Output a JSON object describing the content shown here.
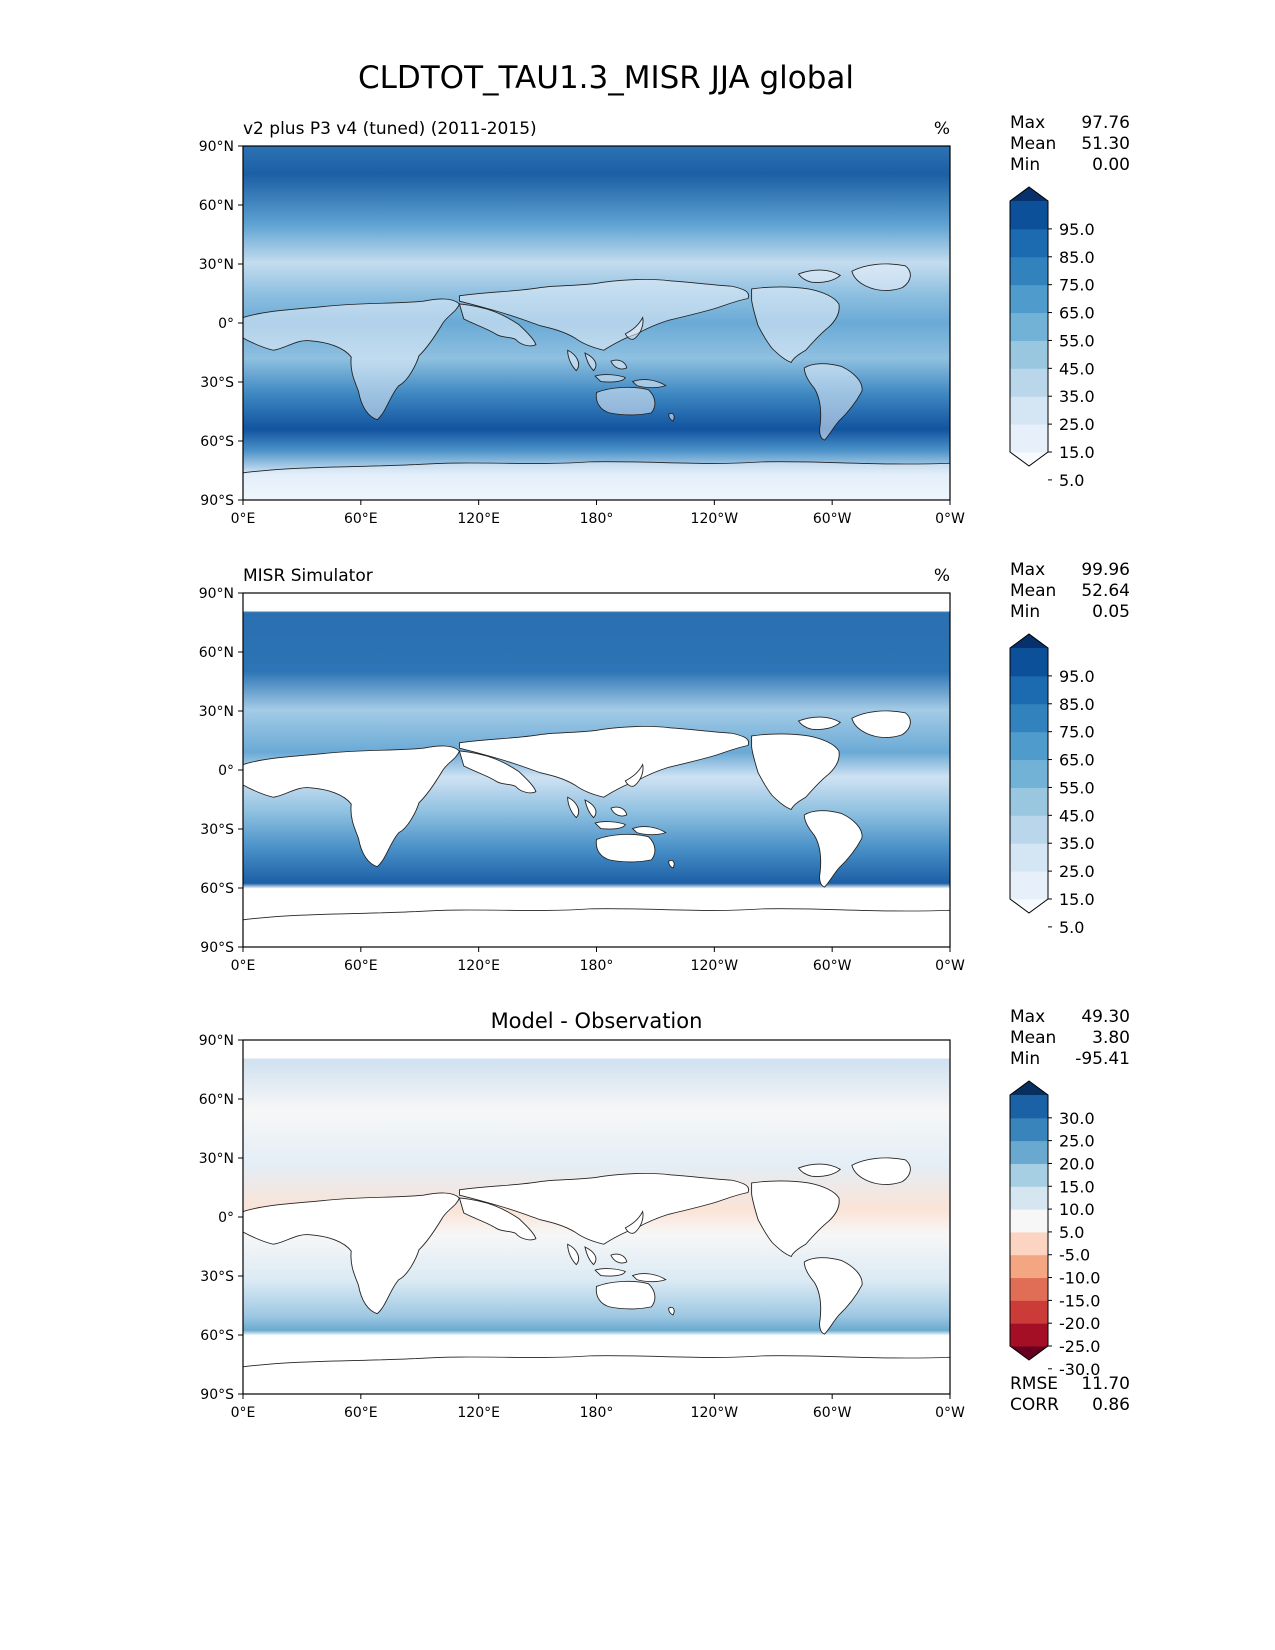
{
  "title": "CLDTOT_TAU1.3_MISR JJA global",
  "lat_ticks": [
    "90°N",
    "60°N",
    "30°N",
    "0°",
    "30°S",
    "60°S",
    "90°S"
  ],
  "lon_ticks": [
    "0°E",
    "60°E",
    "120°E",
    "180°",
    "120°W",
    "60°W",
    "0°W"
  ],
  "panels": [
    {
      "left_title": "v2 plus P3 v4 (tuned) (2011-2015)",
      "center_title": "",
      "units": "%",
      "stats": [
        {
          "label": "Max",
          "value": "97.76"
        },
        {
          "label": "Mean",
          "value": "51.30"
        },
        {
          "label": "Min",
          "value": "0.00"
        }
      ],
      "colorbar": {
        "labels": [
          "95.0",
          "85.0",
          "75.0",
          "65.0",
          "55.0",
          "45.0",
          "35.0",
          "25.0",
          "15.0",
          "5.0"
        ],
        "colors": [
          "#f7fbff",
          "#e7f0fa",
          "#d4e5f4",
          "#bad6eb",
          "#99c7e0",
          "#72b2d7",
          "#4f9bcb",
          "#3282be",
          "#1c6aaf",
          "#0b5098",
          "#08306b"
        ]
      }
    },
    {
      "left_title": "MISR Simulator",
      "center_title": "",
      "units": "%",
      "stats": [
        {
          "label": "Max",
          "value": "99.96"
        },
        {
          "label": "Mean",
          "value": "52.64"
        },
        {
          "label": "Min",
          "value": "0.05"
        }
      ],
      "colorbar": {
        "labels": [
          "95.0",
          "85.0",
          "75.0",
          "65.0",
          "55.0",
          "45.0",
          "35.0",
          "25.0",
          "15.0",
          "5.0"
        ],
        "colors": [
          "#f7fbff",
          "#e7f0fa",
          "#d4e5f4",
          "#bad6eb",
          "#99c7e0",
          "#72b2d7",
          "#4f9bcb",
          "#3282be",
          "#1c6aaf",
          "#0b5098",
          "#08306b"
        ]
      }
    },
    {
      "left_title": "",
      "center_title": "Model - Observation",
      "units": "",
      "stats": [
        {
          "label": "Max",
          "value": "49.30"
        },
        {
          "label": "Mean",
          "value": "3.80"
        },
        {
          "label": "Min",
          "value": "-95.41"
        }
      ],
      "colorbar": {
        "labels": [
          "30.0",
          "25.0",
          "20.0",
          "15.0",
          "10.0",
          "5.0",
          "-5.0",
          "-10.0",
          "-15.0",
          "-20.0",
          "-25.0",
          "-30.0"
        ],
        "colors": [
          "#67001f",
          "#a50f25",
          "#cb3b37",
          "#e06d56",
          "#f4a582",
          "#fbd5c2",
          "#f7f7f7",
          "#d5e6f0",
          "#a7cfe4",
          "#6aa9cf",
          "#3884bb",
          "#1b61a5",
          "#053061"
        ]
      },
      "footer_stats": [
        {
          "label": "RMSE",
          "value": "11.70"
        },
        {
          "label": "CORR",
          "value": "0.86"
        }
      ]
    }
  ],
  "chart_data": [
    {
      "type": "heatmap",
      "title": "v2 plus P3 v4 (tuned) (2011-2015)",
      "units": "%",
      "x_range_deg_east": [
        0,
        360
      ],
      "y_range_deg_north": [
        -90,
        90
      ],
      "levels": [
        5,
        15,
        25,
        35,
        45,
        55,
        65,
        75,
        85,
        95
      ],
      "extend": "both",
      "zonal_mean_profile": [
        {
          "lat": 75,
          "value": 75
        },
        {
          "lat": 60,
          "value": 85
        },
        {
          "lat": 45,
          "value": 75
        },
        {
          "lat": 30,
          "value": 35
        },
        {
          "lat": 15,
          "value": 45
        },
        {
          "lat": 0,
          "value": 50
        },
        {
          "lat": -15,
          "value": 45
        },
        {
          "lat": -30,
          "value": 50
        },
        {
          "lat": -45,
          "value": 80
        },
        {
          "lat": -55,
          "value": 90
        },
        {
          "lat": -65,
          "value": 80
        },
        {
          "lat": -80,
          "value": 10
        }
      ]
    },
    {
      "type": "heatmap",
      "title": "MISR Simulator",
      "units": "%",
      "x_range_deg_east": [
        0,
        360
      ],
      "y_range_deg_north": [
        -90,
        90
      ],
      "levels": [
        5,
        15,
        25,
        35,
        45,
        55,
        65,
        75,
        85,
        95
      ],
      "extend": "both",
      "data_coverage": "ocean only, approx 60°S–80°N",
      "zonal_mean_profile": [
        {
          "lat": 75,
          "value": 75
        },
        {
          "lat": 60,
          "value": 85
        },
        {
          "lat": 45,
          "value": 80
        },
        {
          "lat": 30,
          "value": 45
        },
        {
          "lat": 15,
          "value": 55
        },
        {
          "lat": 0,
          "value": 60
        },
        {
          "lat": -15,
          "value": 55
        },
        {
          "lat": -30,
          "value": 60
        },
        {
          "lat": -45,
          "value": 75
        },
        {
          "lat": -55,
          "value": 80
        }
      ]
    },
    {
      "type": "heatmap",
      "title": "Model - Observation",
      "units": "%",
      "x_range_deg_east": [
        0,
        360
      ],
      "y_range_deg_north": [
        -90,
        90
      ],
      "levels": [
        -30,
        -25,
        -20,
        -15,
        -10,
        -5,
        5,
        10,
        15,
        20,
        25,
        30
      ],
      "extend": "both",
      "rmse": 11.7,
      "corr": 0.86
    }
  ]
}
